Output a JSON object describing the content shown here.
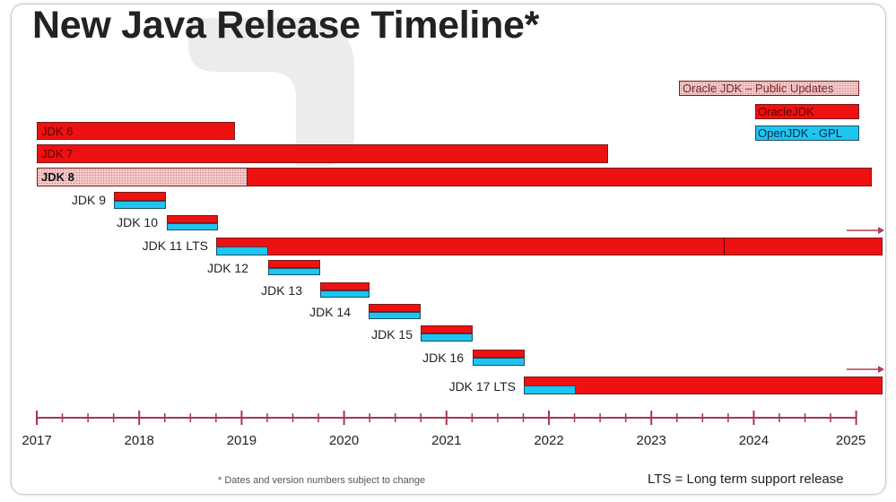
{
  "title": "New Java Release Timeline*",
  "legend": {
    "public_updates": "Oracle JDK – Public Updates",
    "oraclejdk": "OracleJDK",
    "openjdk": "OpenJDK - GPL"
  },
  "bars": {
    "jdk6": "JDK 6",
    "jdk7": "JDK 7",
    "jdk8": "JDK 8"
  },
  "rows": {
    "jdk9": "JDK 9",
    "jdk10": "JDK 10",
    "jdk11": "JDK 11 LTS",
    "jdk12": "JDK 12",
    "jdk13": "JDK 13",
    "jdk14": "JDK 14",
    "jdk15": "JDK 15",
    "jdk16": "JDK 16",
    "jdk17": "JDK 17 LTS"
  },
  "axis": {
    "years": [
      "2017",
      "2018",
      "2019",
      "2020",
      "2021",
      "2022",
      "2023",
      "2024",
      "2025"
    ]
  },
  "footnote": "* Dates and version numbers subject to change",
  "lts_note": "LTS = Long term support release",
  "colors": {
    "oracle_red": "#ee1111",
    "openjdk_blue": "#1ec5f0",
    "public_updates_pink": "#f2c9c9",
    "axis": "#a8354f"
  }
}
